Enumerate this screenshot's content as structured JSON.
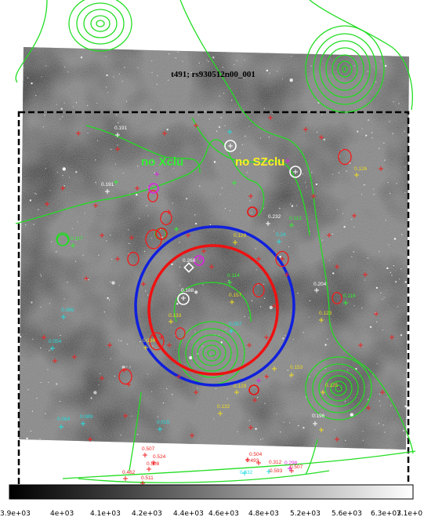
{
  "title": "t491; rs930512n00_001",
  "labels": {
    "no_xclu": "no Xclu",
    "no_szclu": "no SZclu"
  },
  "colorbar": {
    "ticks": [
      "3.9e+03",
      "4e+03",
      "4.1e+03",
      "4.2e+03",
      "4.4e+03",
      "4.6e+03",
      "4.8e+03",
      "5.2e+03",
      "5.6e+03",
      "6.3e+03",
      "7.1e+0"
    ]
  },
  "colors": {
    "contour": "#22dd22",
    "circle_outer": "#1020dd",
    "circle_inner": "#ee1111",
    "frame_dash": "#000000",
    "label_green": "#33ee33",
    "label_yellow": "#ffee22",
    "marker_red": "#ee2020",
    "marker_cyan": "#22dddd",
    "marker_yellow": "#eedd22",
    "marker_white": "#ffffff",
    "marker_magenta": "#dd22dd"
  },
  "redshift_labels": [
    {
      "text": "0.191",
      "color": "white"
    },
    {
      "text": "0.191",
      "color": "white"
    },
    {
      "text": "0.232",
      "color": "white"
    },
    {
      "text": "0.204",
      "color": "white"
    },
    {
      "text": "0.188",
      "color": "white"
    },
    {
      "text": "0.196",
      "color": "white"
    },
    {
      "text": "0.129",
      "color": "yellow"
    },
    {
      "text": "0.157",
      "color": "yellow"
    },
    {
      "text": "0.126",
      "color": "yellow"
    },
    {
      "text": "0.123",
      "color": "yellow"
    },
    {
      "text": "0.133",
      "color": "yellow"
    },
    {
      "text": "0.153",
      "color": "yellow"
    },
    {
      "text": "0.129",
      "color": "yellow"
    },
    {
      "text": "0.125",
      "color": "yellow"
    },
    {
      "text": "0.132",
      "color": "yellow"
    },
    {
      "text": "0.136",
      "color": "yellow"
    },
    {
      "text": "0.117",
      "color": "green"
    },
    {
      "text": "0.113",
      "color": "green"
    },
    {
      "text": "0.114",
      "color": "green"
    },
    {
      "text": "0.116",
      "color": "green"
    },
    {
      "text": "0.24",
      "color": "cyan"
    },
    {
      "text": "0.086",
      "color": "cyan"
    },
    {
      "text": "0.054",
      "color": "cyan"
    },
    {
      "text": "0.057",
      "color": "cyan"
    },
    {
      "text": "0.084",
      "color": "cyan"
    },
    {
      "text": "0.089",
      "color": "cyan"
    },
    {
      "text": "0.015",
      "color": "cyan"
    },
    {
      "text": "0.507",
      "color": "red"
    },
    {
      "text": "0.524",
      "color": "red"
    },
    {
      "text": "0.508",
      "color": "red"
    },
    {
      "text": "0.462",
      "color": "red"
    },
    {
      "text": "0.511",
      "color": "red"
    },
    {
      "text": "0.504",
      "color": "red"
    },
    {
      "text": "0.493",
      "color": "red"
    },
    {
      "text": "0.312",
      "color": "red"
    },
    {
      "text": "0.298",
      "color": "magenta"
    },
    {
      "text": "0.507",
      "color": "red"
    },
    {
      "text": "0.432",
      "color": "cyan"
    },
    {
      "text": "0.593",
      "color": "red"
    },
    {
      "text": "0.268",
      "color": "white"
    }
  ]
}
